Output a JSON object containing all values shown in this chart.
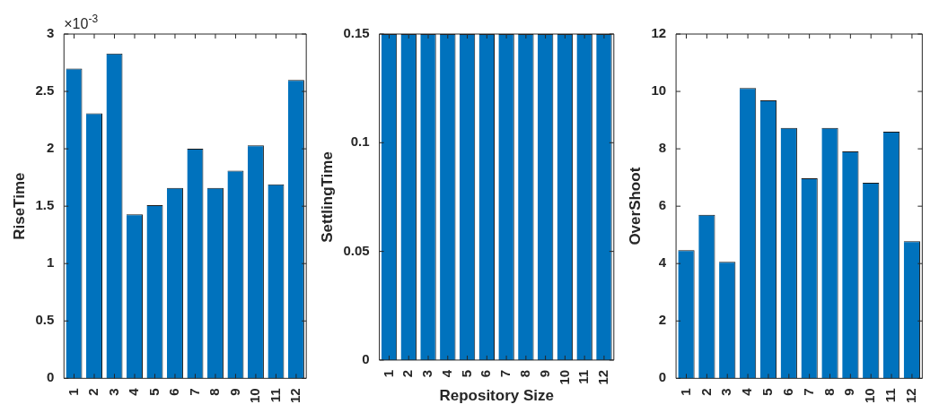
{
  "chart_data": [
    {
      "type": "bar",
      "categories": [
        "1",
        "2",
        "3",
        "4",
        "5",
        "6",
        "7",
        "8",
        "9",
        "10",
        "11",
        "12"
      ],
      "values": [
        2.7,
        2.31,
        2.83,
        1.43,
        1.51,
        1.66,
        2.0,
        1.66,
        1.81,
        2.03,
        1.69,
        2.6
      ],
      "color": "#0072bd",
      "ylabel": "RiseTime",
      "ylim": [
        0,
        3
      ],
      "yticks": [
        0,
        0.5,
        1,
        1.5,
        2,
        2.5,
        3
      ],
      "annotations": [
        "×10$^{-3}$"
      ]
    },
    {
      "type": "bar",
      "categories": [
        "1",
        "2",
        "3",
        "4",
        "5",
        "6",
        "7",
        "8",
        "9",
        "10",
        "11",
        "12"
      ],
      "values": [
        0.15,
        0.15,
        0.15,
        0.15,
        0.15,
        0.15,
        0.15,
        0.15,
        0.15,
        0.15,
        0.15,
        0.15
      ],
      "color": "#0072bd",
      "ylabel": "SettlingTime",
      "xlabel": "Repository Size",
      "ylim": [
        0,
        0.15
      ],
      "yticks": [
        0,
        0.05,
        0.1,
        0.15
      ]
    },
    {
      "type": "bar",
      "categories": [
        "1",
        "2",
        "3",
        "4",
        "5",
        "6",
        "7",
        "8",
        "9",
        "10",
        "11",
        "12"
      ],
      "values": [
        4.47,
        5.7,
        4.06,
        10.12,
        9.69,
        8.73,
        6.97,
        8.73,
        7.91,
        6.82,
        8.6,
        4.78
      ],
      "color": "#0072bd",
      "ylabel": "OverShoot",
      "ylim": [
        0,
        12
      ],
      "yticks": [
        0,
        2,
        4,
        6,
        8,
        10,
        12
      ]
    }
  ]
}
